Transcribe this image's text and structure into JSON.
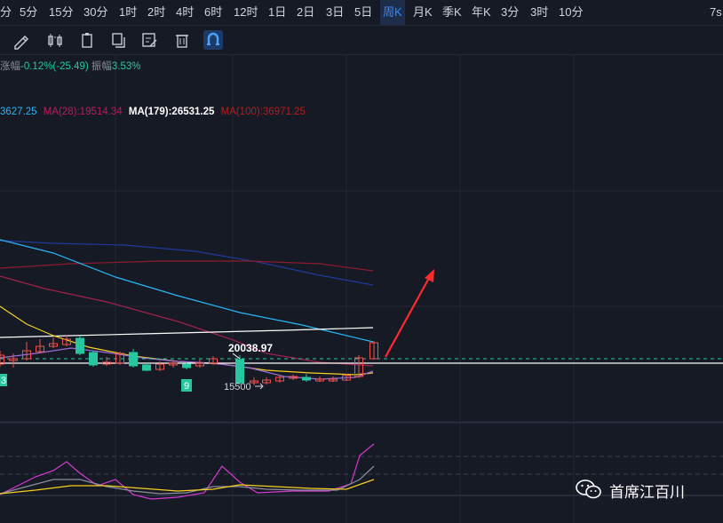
{
  "timeframes": [
    {
      "label": "分",
      "active": false
    },
    {
      "label": "5分",
      "active": false
    },
    {
      "label": "15分",
      "active": false
    },
    {
      "label": "30分",
      "active": false
    },
    {
      "label": "1时",
      "active": false
    },
    {
      "label": "2时",
      "active": false
    },
    {
      "label": "4时",
      "active": false
    },
    {
      "label": "6时",
      "active": false
    },
    {
      "label": "12时",
      "active": false
    },
    {
      "label": "1日",
      "active": false
    },
    {
      "label": "2日",
      "active": false
    },
    {
      "label": "3日",
      "active": false
    },
    {
      "label": "5日",
      "active": false
    },
    {
      "label": "周K",
      "active": true
    },
    {
      "label": "月K",
      "active": false
    },
    {
      "label": "季K",
      "active": false
    },
    {
      "label": "年K",
      "active": false
    },
    {
      "label": "3分",
      "active": false
    },
    {
      "label": "3时",
      "active": false
    },
    {
      "label": "10分",
      "active": false
    }
  ],
  "right_label": "7s",
  "tools": [
    {
      "icon": "pencil-icon"
    },
    {
      "icon": "candlestick-icon"
    },
    {
      "icon": "clipboard-icon"
    },
    {
      "icon": "copy-icon"
    },
    {
      "icon": "edit-note-icon"
    },
    {
      "icon": "trash-icon"
    },
    {
      "icon": "magnet-icon",
      "active": true
    }
  ],
  "stats": {
    "change_label": "涨幅",
    "change_value": "-0.12%(-25.49)",
    "amplitude_label": "振幅",
    "amplitude_value": "3.53%"
  },
  "ma_labels": [
    {
      "text": "3627.25",
      "color": "#29b6f6"
    },
    {
      "text": "MA(28):19514.34",
      "color": "#c2185b"
    },
    {
      "text": "MA(179):26531.25",
      "color": "#ffffff"
    },
    {
      "text": "MA(100):36971.25",
      "color": "#b71c1c"
    }
  ],
  "price_labels": {
    "high": "20038.97",
    "low": "15500",
    "marker_9": "9",
    "marker_3": "3"
  },
  "colors": {
    "up": "#ef5350",
    "down": "#26c6a0",
    "arrow": "#ff2a2a",
    "ma_cyan": "#29b6f6",
    "ma_yellow": "#f5d020",
    "ma_purple": "#9c6cd8",
    "ma_darkred": "#8e1b2e",
    "ma_navy": "#1f3a9a",
    "ma_white": "#ffffff",
    "rsi_magenta": "#d63ad1",
    "rsi_gray": "#8a8f9c",
    "rsi_yellow": "#f5d020"
  },
  "watermark": "首席江百川"
}
